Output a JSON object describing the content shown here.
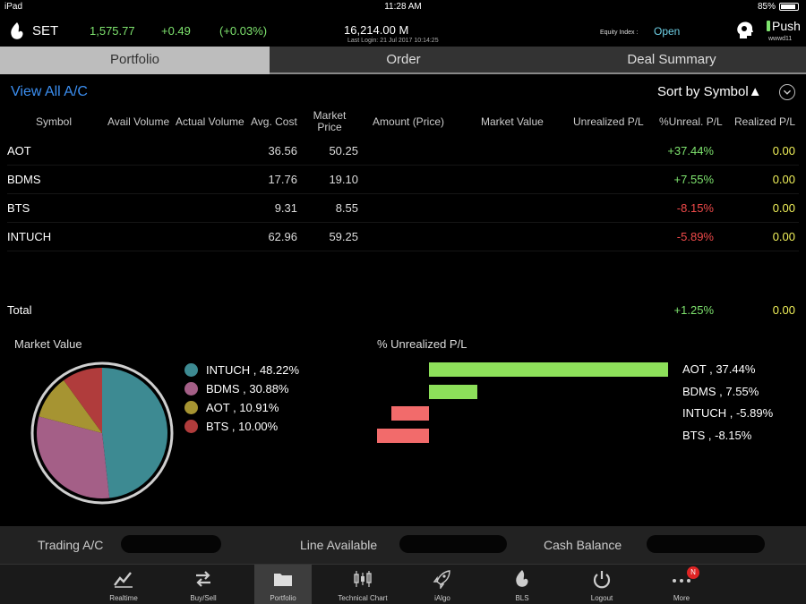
{
  "status": {
    "device": "iPad",
    "time": "11:28 AM",
    "battery": "85%"
  },
  "index": {
    "name": "SET",
    "value": "1,575.77",
    "change": "+0.49",
    "percent": "(+0.03%)",
    "volume": "16,214.00 M",
    "last_login": "Last Login: 21 Jul 2017 10:14:25",
    "equity_label": "Equity Index :",
    "equity_status": "Open",
    "push_label": "Push",
    "user": "wwwd11"
  },
  "tabs": [
    {
      "label": "Portfolio",
      "active": true
    },
    {
      "label": "Order",
      "active": false
    },
    {
      "label": "Deal Summary",
      "active": false
    }
  ],
  "view_all": "View All A/C",
  "sort_label": "Sort by Symbol▲",
  "table": {
    "headers": {
      "symbol": "Symbol",
      "avail": "Avail Volume",
      "actual": "Actual Volume",
      "avg": "Avg. Cost",
      "market_l1": "Market",
      "market_l2": "Price",
      "amount": "Amount (Price)",
      "market_value": "Market Value",
      "unrealized": "Unrealized P/L",
      "pct_unreal": "%Unreal. P/L",
      "realized": "Realized P/L"
    },
    "rows": [
      {
        "symbol": "AOT",
        "avg_cost": "36.56",
        "market_price": "50.25",
        "pct_unreal": "+37.44%",
        "realized": "0.00"
      },
      {
        "symbol": "BDMS",
        "avg_cost": "17.76",
        "market_price": "19.10",
        "pct_unreal": "+7.55%",
        "realized": "0.00"
      },
      {
        "symbol": "BTS",
        "avg_cost": "9.31",
        "market_price": "8.55",
        "pct_unreal": "-8.15%",
        "realized": "0.00"
      },
      {
        "symbol": "INTUCH",
        "avg_cost": "62.96",
        "market_price": "59.25",
        "pct_unreal": "-5.89%",
        "realized": "0.00"
      }
    ],
    "total": {
      "label": "Total",
      "pct_unreal": "+1.25%",
      "realized": "0.00"
    }
  },
  "chart_data": [
    {
      "type": "pie",
      "title": "Market Value",
      "labels": [
        "INTUCH",
        "BDMS",
        "AOT",
        "BTS"
      ],
      "values": [
        48.22,
        30.88,
        10.91,
        10.0
      ],
      "legend_text": [
        "INTUCH , 48.22%",
        "BDMS , 30.88%",
        "AOT , 10.91%",
        "BTS , 10.00%"
      ],
      "colors": [
        "#3d8a92",
        "#a45f87",
        "#a69432",
        "#b03c3c"
      ],
      "legend": "right"
    },
    {
      "type": "bar",
      "orientation": "horizontal",
      "title": "% Unrealized P/L",
      "categories": [
        "AOT",
        "BDMS",
        "INTUCH",
        "BTS"
      ],
      "values": [
        37.44,
        7.55,
        -5.89,
        -8.15
      ],
      "labels": [
        "AOT , 37.44%",
        "BDMS , 7.55%",
        "INTUCH , -5.89%",
        "BTS , -8.15%"
      ],
      "positive_color": "#8de05a",
      "negative_color": "#f26b6b"
    }
  ],
  "footer": {
    "trading": "Trading A/C",
    "line": "Line Available",
    "cash": "Cash Balance"
  },
  "nav": [
    {
      "label": "Realtime",
      "icon": "realtime-chart-icon"
    },
    {
      "label": "Buy/Sell",
      "icon": "buy-sell-arrows-icon"
    },
    {
      "label": "Portfolio",
      "icon": "portfolio-folder-icon",
      "active": true
    },
    {
      "label": "Technical Chart",
      "icon": "candlestick-icon"
    },
    {
      "label": "iAlgo",
      "icon": "rocket-icon"
    },
    {
      "label": "BLS",
      "icon": "bls-logo-icon"
    },
    {
      "label": "Logout",
      "icon": "power-icon"
    },
    {
      "label": "More",
      "icon": "more-dots-icon",
      "badge": "N"
    }
  ]
}
